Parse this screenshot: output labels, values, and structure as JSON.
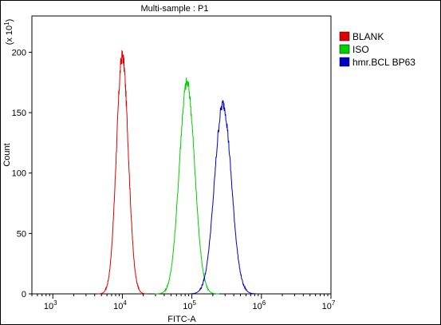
{
  "chart_data": {
    "type": "line",
    "title": "Multi-sample : P1",
    "xlabel": "FITC-A",
    "ylabel": "Count",
    "y_multiplier_base": "(x 10",
    "y_multiplier_exp": "1",
    "y_multiplier_close": ")",
    "x_scale": "log",
    "xlim": [
      500,
      10000000
    ],
    "ylim": [
      0,
      230
    ],
    "x_ticks": [
      {
        "value": 1000,
        "base": "10",
        "exp": "3"
      },
      {
        "value": 10000,
        "base": "10",
        "exp": "4"
      },
      {
        "value": 100000,
        "base": "10",
        "exp": "5"
      },
      {
        "value": 1000000,
        "base": "10",
        "exp": "6"
      },
      {
        "value": 10000000,
        "base": "10",
        "exp": "7"
      }
    ],
    "y_ticks": [
      0,
      50,
      100,
      150,
      200
    ],
    "grid": false,
    "legend_position": "right",
    "series": [
      {
        "name": "BLANK",
        "color": "#e00000",
        "peak_x": 10000,
        "peak_y": 197,
        "sigma_log": 0.085
      },
      {
        "name": "ISO",
        "color": "#00d000",
        "peak_x": 85000,
        "peak_y": 175,
        "sigma_log": 0.11
      },
      {
        "name": "hmr.BCL BP63",
        "color": "#0000c0",
        "peak_x": 280000,
        "peak_y": 157,
        "sigma_log": 0.12
      }
    ]
  }
}
